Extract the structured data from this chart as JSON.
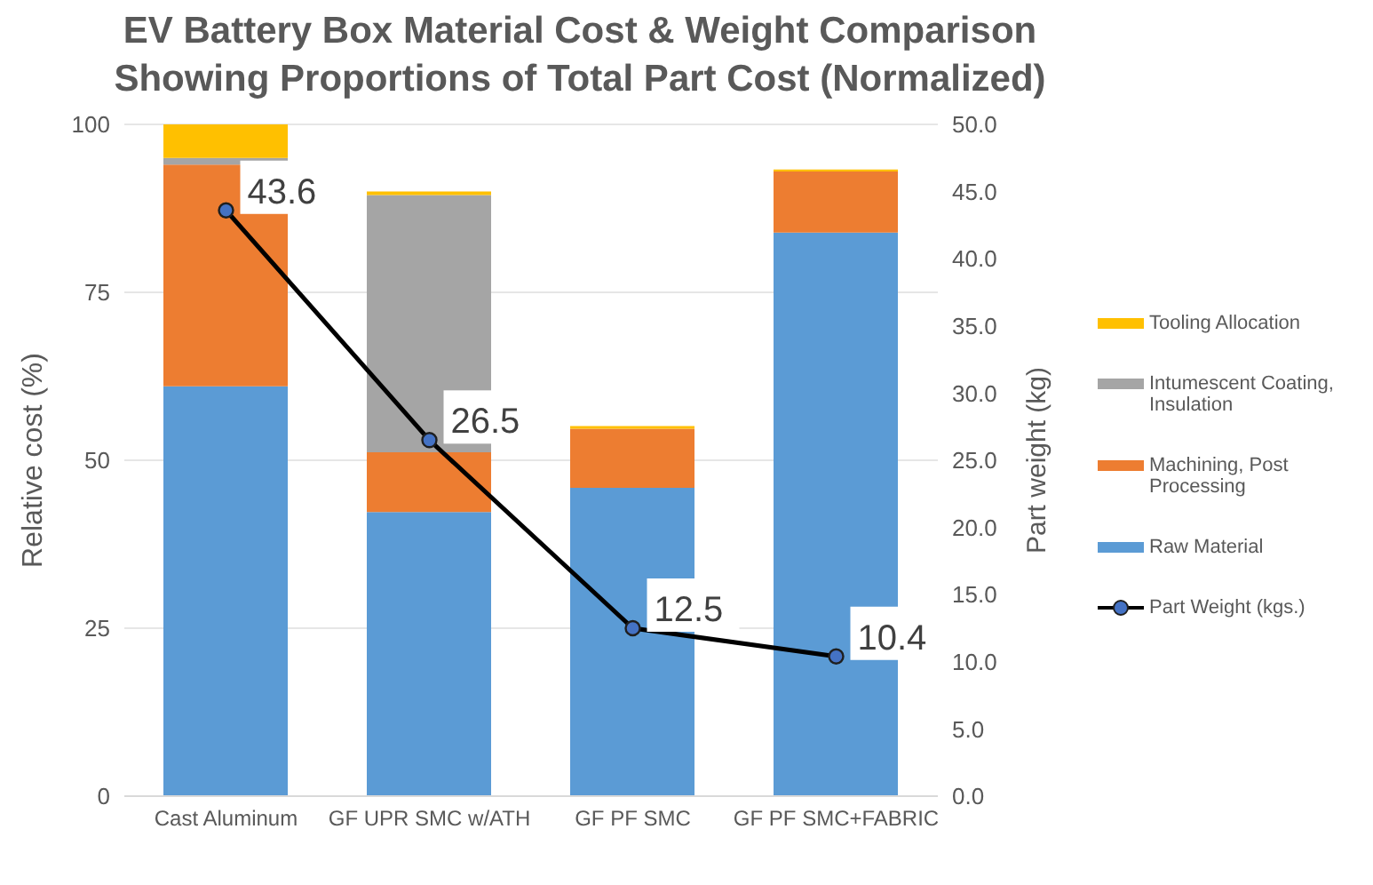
{
  "chart_data": {
    "type": "bar",
    "title": "EV Battery Box Material Cost & Weight Comparison Showing Proportions of Total Part Cost (Normalized)",
    "ylabel": "Relative cost (%)",
    "y2label": "Part weight (kg)",
    "categories": [
      "Cast Aluminum",
      "GF UPR SMC w/ATH",
      "GF PF SMC",
      "GF PF SMC+FABRIC"
    ],
    "stacked": true,
    "series": [
      {
        "name": "Raw Material",
        "color": "#5b9bd5",
        "values": [
          61,
          42.3,
          45.9,
          83.9
        ]
      },
      {
        "name": "Machining, Post Processing",
        "color": "#ed7d31",
        "values": [
          33,
          8.9,
          8.8,
          9.1
        ]
      },
      {
        "name": "Intumescent Coating, Insulation",
        "color": "#a5a5a5",
        "values": [
          1,
          38.3,
          0,
          0
        ]
      },
      {
        "name": "Tooling Allocation",
        "color": "#ffc000",
        "values": [
          5,
          0.5,
          0.4,
          0.3
        ]
      },
      {
        "name": "Part Weight (kgs.)",
        "type": "line",
        "axis": "y2",
        "color": "#000000",
        "marker": "circle",
        "values": [
          43.6,
          26.5,
          12.5,
          10.4
        ],
        "value_labels": [
          "43.6",
          "26.5",
          "12.5",
          "10.4"
        ]
      }
    ],
    "ylim": [
      0,
      100
    ],
    "yticks": [
      0,
      25,
      50,
      75,
      100
    ],
    "y2lim": [
      0,
      50
    ],
    "y2ticks": [
      {
        "value": 0,
        "label": "0.0"
      },
      {
        "value": 5,
        "label": "5.0"
      },
      {
        "value": 10,
        "label": "10.0"
      },
      {
        "value": 15,
        "label": "15.0"
      },
      {
        "value": 20,
        "label": "20.0"
      },
      {
        "value": 25,
        "label": "25.0"
      },
      {
        "value": 30,
        "label": "30.0"
      },
      {
        "value": 35,
        "label": "35.0"
      },
      {
        "value": 40,
        "label": "40.0"
      },
      {
        "value": 45,
        "label": "45.0"
      },
      {
        "value": 50,
        "label": "50.0"
      }
    ],
    "grid": "y",
    "legend": "right"
  }
}
